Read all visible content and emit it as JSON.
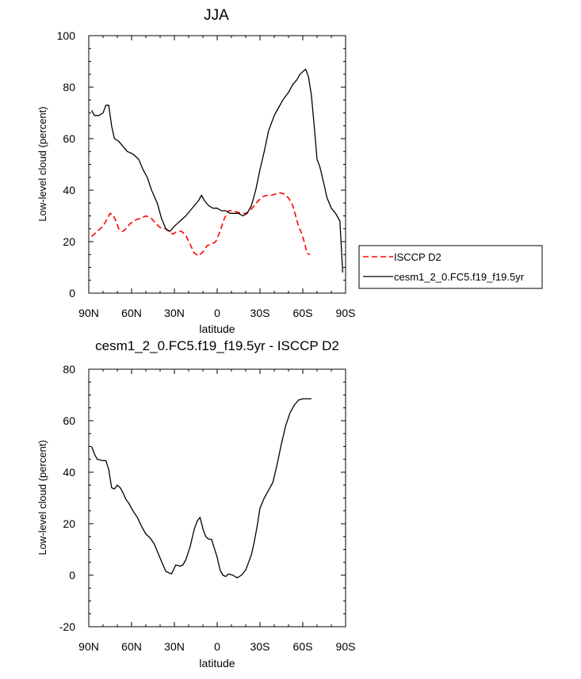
{
  "chart_data": [
    {
      "type": "line",
      "title": "JJA",
      "xlabel": "latitude",
      "ylabel": "Low-level cloud (percent)",
      "xlim": [
        90,
        -90
      ],
      "ylim": [
        0,
        100
      ],
      "xticks": [
        90,
        60,
        30,
        0,
        -30,
        -60,
        -90
      ],
      "xtick_labels": [
        "90N",
        "60N",
        "30N",
        "0",
        "30S",
        "60S",
        "90S"
      ],
      "yticks": [
        0,
        20,
        40,
        60,
        80,
        100
      ],
      "ytick_labels": [
        "0",
        "20",
        "40",
        "60",
        "80",
        "100"
      ],
      "legend_position": "right",
      "series": [
        {
          "name": "ISCCP D2",
          "color": "#ff0000",
          "dash": "dashed",
          "x": [
            88,
            84,
            80,
            77,
            75,
            73,
            71,
            69,
            66,
            64,
            61,
            57,
            54,
            50,
            46,
            43,
            40,
            36,
            33,
            31,
            28,
            25,
            22,
            19,
            16,
            13,
            10,
            7,
            4,
            1,
            -2,
            -5,
            -8,
            -11,
            -14,
            -17,
            -20,
            -23,
            -26,
            -29,
            -32,
            -35,
            -38,
            -41,
            -44,
            -47,
            -50,
            -53,
            -55,
            -57,
            -59,
            -61,
            -63,
            -65
          ],
          "values": [
            22,
            24,
            26,
            29,
            31,
            30.5,
            28,
            25,
            24,
            25,
            27,
            28.5,
            29,
            30,
            29,
            27,
            25.5,
            25,
            23.5,
            23,
            24,
            24,
            22.5,
            19,
            15.5,
            14.5,
            16,
            18.5,
            19,
            20,
            24,
            29,
            32,
            32,
            31.5,
            31,
            31,
            32,
            34,
            36,
            37.5,
            38,
            38,
            38.5,
            39,
            38.5,
            37,
            34,
            30,
            26,
            23.5,
            20,
            15.5,
            15
          ]
        },
        {
          "name": "cesm1_2_0.FC5.f19_f19.5yr",
          "color": "#000000",
          "dash": "solid",
          "x": [
            88,
            86,
            83,
            80,
            78,
            76,
            74,
            72,
            69,
            66,
            63,
            59,
            55,
            52,
            49,
            46,
            42,
            39,
            36,
            33,
            30,
            28,
            26,
            22,
            19,
            16,
            13,
            11,
            9,
            6,
            3,
            0,
            -3,
            -6,
            -9,
            -12,
            -15,
            -18,
            -21,
            -24,
            -27,
            -30,
            -33,
            -36,
            -40,
            -43,
            -46,
            -50,
            -53,
            -56,
            -58,
            -60,
            -62,
            -64,
            -66,
            -68,
            -70,
            -72,
            -75,
            -77,
            -80,
            -83,
            -86,
            -88
          ],
          "values": [
            71,
            69,
            69,
            70,
            73,
            73,
            65,
            60,
            59,
            57,
            55,
            54,
            52,
            48,
            45,
            40,
            35,
            29,
            25,
            24,
            26,
            27,
            28,
            30,
            32,
            34,
            36,
            38,
            36,
            34,
            33,
            33,
            32,
            32,
            31,
            31,
            31,
            30,
            31,
            34,
            40,
            48,
            55,
            63,
            69,
            72,
            75,
            78,
            81,
            83,
            85,
            86,
            87,
            84,
            77,
            65,
            52,
            49,
            42,
            37,
            33,
            31,
            28,
            8
          ]
        }
      ]
    },
    {
      "type": "line",
      "title": "cesm1_2_0.FC5.f19_f19.5yr - ISCCP D2",
      "xlabel": "latitude",
      "ylabel": "Low-level cloud (percent)",
      "xlim": [
        90,
        -90
      ],
      "ylim": [
        -20,
        80
      ],
      "xticks": [
        90,
        60,
        30,
        0,
        -30,
        -60,
        -90
      ],
      "xtick_labels": [
        "90N",
        "60N",
        "30N",
        "0",
        "30S",
        "60S",
        "90S"
      ],
      "yticks": [
        -20,
        0,
        20,
        40,
        60,
        80
      ],
      "ytick_labels": [
        "-20",
        "0",
        "20",
        "40",
        "60",
        "80"
      ],
      "series": [
        {
          "color": "#000000",
          "dash": "solid",
          "x": [
            88,
            86,
            84,
            80,
            78,
            76,
            74,
            72,
            70,
            68,
            66,
            64,
            62,
            59,
            56,
            53,
            50,
            47,
            44,
            41,
            38,
            36,
            34,
            32,
            29,
            26,
            24,
            22,
            19,
            16,
            14,
            12,
            10,
            8,
            6,
            4,
            2,
            0,
            -2,
            -4,
            -6,
            -8,
            -11,
            -14,
            -17,
            -20,
            -22,
            -24,
            -26,
            -28,
            -30,
            -33,
            -36,
            -39,
            -42,
            -45,
            -48,
            -51,
            -54,
            -57,
            -60,
            -62,
            -64,
            -66
          ],
          "values": [
            50,
            47,
            45,
            44.5,
            44.5,
            41,
            34,
            33.5,
            35,
            34,
            32,
            29.5,
            28,
            25,
            22.5,
            19,
            16,
            14.5,
            12,
            8,
            4,
            1.5,
            1,
            0.5,
            4,
            3.5,
            4,
            6,
            11,
            18,
            21,
            22.5,
            18,
            15,
            14,
            14,
            10.5,
            7,
            2,
            0,
            -0.5,
            0.5,
            0,
            -1,
            0,
            2,
            5,
            8,
            13,
            19,
            26,
            30,
            33,
            36,
            43,
            51,
            58,
            63,
            66,
            68,
            68.5,
            68.5,
            68.5,
            68.5
          ]
        }
      ]
    }
  ]
}
